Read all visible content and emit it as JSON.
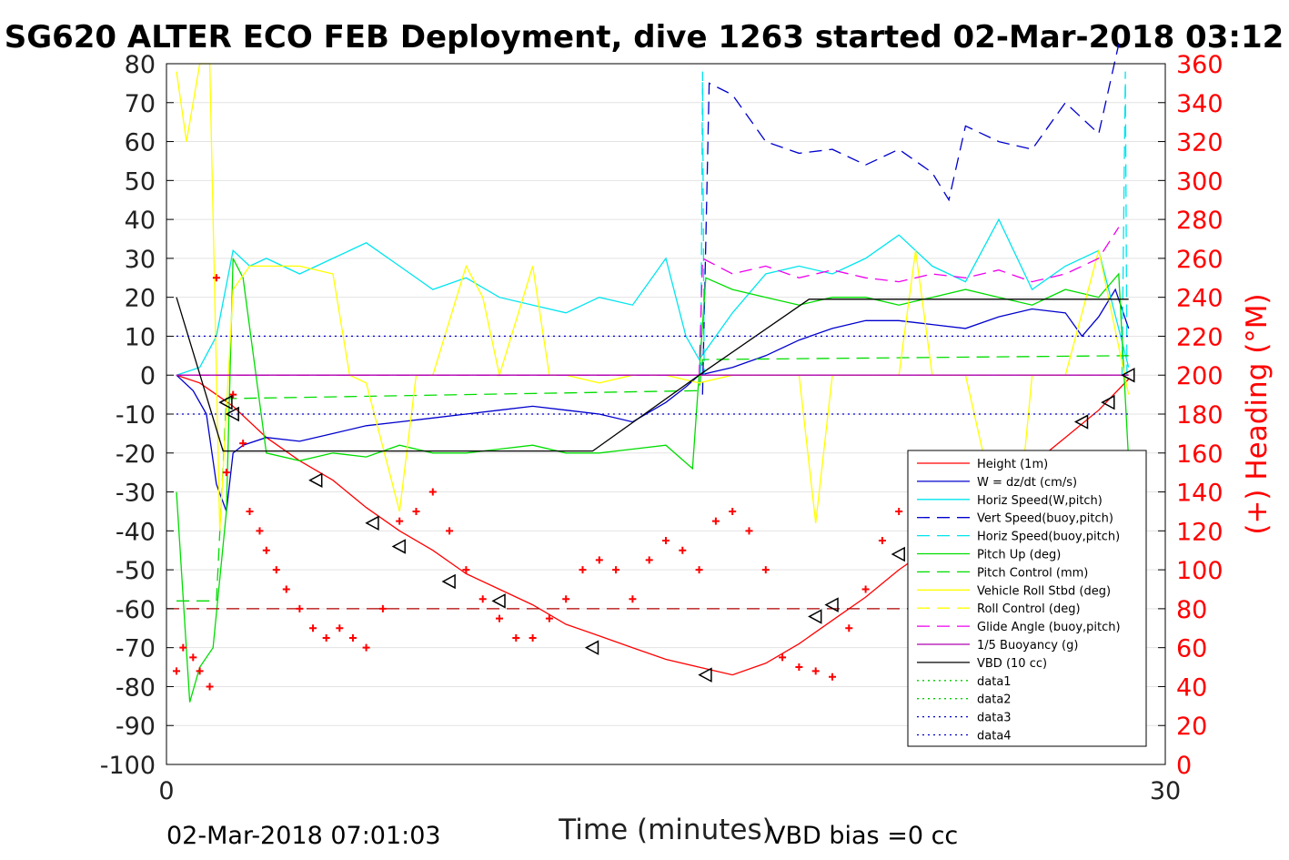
{
  "chart_data": {
    "type": "line",
    "title": "SG620 ALTER ECO FEB Deployment, dive 1263 started 02-Mar-2018 03:12",
    "xlabel": "Time (minutes)",
    "ylabel_right": "(+) Heading (°M)",
    "xlim": [
      0,
      30
    ],
    "ylim": [
      -100,
      80
    ],
    "ylim_right": [
      0,
      360
    ],
    "x_ticks": [
      "0",
      "30"
    ],
    "y_ticks": [
      "80",
      "70",
      "60",
      "50",
      "40",
      "30",
      "20",
      "10",
      "0",
      "-10",
      "-20",
      "-30",
      "-40",
      "-50",
      "-60",
      "-70",
      "-80",
      "-90",
      "-100"
    ],
    "y_ticks_right": [
      "360",
      "340",
      "320",
      "300",
      "280",
      "260",
      "240",
      "220",
      "200",
      "180",
      "160",
      "140",
      "120",
      "100",
      "80",
      "60",
      "40",
      "20",
      "0"
    ],
    "grid": "horizontal",
    "legend_position": "bottom-right",
    "footer_left": "02-Mar-2018 07:01:03",
    "footer_right": "VBD bias =0 cc",
    "colors": {
      "height": "#ff0000",
      "w": "#0000cd",
      "horiz_speed": "#00e5ee",
      "vert_speed_buoy": "#0000cd",
      "pitch": "#00dd00",
      "roll": "#ffff00",
      "glide": "#ee00ee",
      "buoyancy": "#b000b0",
      "vbd": "#000000",
      "heading": "#ff0000",
      "dotted": "#0000cd",
      "green_dotted": "#00cc00"
    },
    "series": [
      {
        "name": "Height (1m)",
        "style": "solid",
        "color": "#ff0000",
        "x": [
          0.3,
          1.0,
          2.0,
          3.0,
          4.0,
          5.0,
          6.0,
          7.0,
          8.0,
          9.0,
          10.0,
          11.0,
          12.0,
          13.0,
          14.0,
          15.0,
          16.0,
          17.0,
          18.0,
          19.0,
          20.0,
          21.0,
          22.0,
          23.0,
          24.0,
          25.0,
          26.0,
          27.0,
          28.0,
          28.9
        ],
        "values": [
          0,
          -2,
          -8,
          -16,
          -22,
          -27,
          -34,
          -40,
          -45,
          -51,
          -55,
          -59,
          -64,
          -67,
          -70,
          -73,
          -75,
          -77,
          -74,
          -69,
          -63,
          -57,
          -50,
          -44,
          -37,
          -30,
          -23,
          -16,
          -9,
          -1
        ]
      },
      {
        "name": "W = dz/dt (cm/s)",
        "style": "solid",
        "color": "#0000cd",
        "x": [
          0.3,
          0.8,
          1.2,
          1.5,
          1.8,
          2.0,
          2.3,
          3.0,
          4.0,
          5.0,
          6.0,
          7.0,
          8.0,
          9.0,
          10.0,
          11.0,
          12.0,
          13.0,
          14.0,
          15.0,
          15.6,
          16.0,
          17.0,
          18.0,
          19.0,
          20.0,
          21.0,
          22.0,
          23.0,
          24.0,
          25.0,
          26.0,
          27.0,
          27.5,
          28.0,
          28.5,
          28.9
        ],
        "values": [
          0,
          -4,
          -10,
          -28,
          -35,
          -20,
          -18,
          -16,
          -17,
          -15,
          -13,
          -12,
          -11,
          -10,
          -9,
          -8,
          -9,
          -10,
          -12,
          -7,
          -3,
          0,
          2,
          5,
          9,
          12,
          14,
          14,
          13,
          12,
          15,
          17,
          16,
          10,
          15,
          22,
          12
        ]
      },
      {
        "name": "Horiz Speed(W,pitch)",
        "style": "solid",
        "color": "#00e5ee",
        "x": [
          0.3,
          1.0,
          1.5,
          2.0,
          2.5,
          3.0,
          4.0,
          5.0,
          6.0,
          7.0,
          8.0,
          9.0,
          10.0,
          11.0,
          12.0,
          13.0,
          14.0,
          15.0,
          15.6,
          16.0,
          17.0,
          18.0,
          19.0,
          20.0,
          21.0,
          22.0,
          23.0,
          24.0,
          25.0,
          26.0,
          27.0,
          28.0,
          28.9
        ],
        "values": [
          0,
          2,
          10,
          32,
          28,
          30,
          26,
          30,
          34,
          28,
          22,
          25,
          20,
          18,
          16,
          20,
          18,
          30,
          10,
          4,
          16,
          26,
          28,
          26,
          30,
          36,
          28,
          24,
          40,
          22,
          28,
          32,
          2
        ]
      },
      {
        "name": "Vert Speed(buoy,pitch)",
        "style": "dash",
        "color": "#0000cd",
        "x": [
          16.1,
          16.3,
          17.0,
          18.0,
          19.0,
          20.0,
          21.0,
          22.0,
          23.0,
          23.5,
          24.0,
          25.0,
          26.0,
          27.0,
          28.0,
          28.6
        ],
        "values": [
          -5,
          75,
          72,
          60,
          57,
          58,
          54,
          58,
          52,
          45,
          64,
          60,
          58,
          70,
          62,
          85
        ]
      },
      {
        "name": "Horiz Speed(buoy,pitch)",
        "style": "dash",
        "color": "#00e5ee",
        "x": [
          16.05,
          16.1,
          16.15,
          28.7,
          28.8,
          28.85
        ],
        "values": [
          0,
          78,
          0,
          0,
          78,
          0
        ]
      },
      {
        "name": "Pitch Up (deg)",
        "style": "solid",
        "color": "#00dd00",
        "x": [
          0.3,
          0.7,
          1.0,
          1.4,
          1.8,
          2.0,
          2.3,
          3.0,
          4.0,
          5.0,
          6.0,
          7.0,
          8.0,
          9.0,
          10.0,
          11.0,
          12.0,
          13.0,
          14.0,
          15.0,
          15.8,
          16.2,
          17.0,
          18.0,
          19.0,
          20.0,
          21.0,
          22.0,
          23.0,
          24.0,
          25.0,
          26.0,
          27.0,
          28.0,
          28.6,
          28.9
        ],
        "values": [
          -30,
          -84,
          -75,
          -70,
          -35,
          30,
          25,
          -20,
          -22,
          -20,
          -21,
          -18,
          -20,
          -20,
          -19,
          -18,
          -20,
          -20,
          -19,
          -18,
          -24,
          25,
          22,
          20,
          18,
          20,
          20,
          18,
          20,
          22,
          20,
          18,
          22,
          20,
          26,
          -22
        ]
      },
      {
        "name": "Pitch Control (mm)",
        "style": "dash",
        "color": "#00dd00",
        "x": [
          0.3,
          1.5,
          1.8,
          2.0,
          16.0,
          16.1,
          28.9
        ],
        "values": [
          -58,
          -58,
          -6,
          -6,
          -4,
          4,
          5
        ]
      },
      {
        "name": "Vehicle Roll Stbd (deg)",
        "style": "solid",
        "color": "#ffff00",
        "x": [
          0.3,
          0.6,
          1.0,
          1.3,
          1.6,
          2.0,
          2.5,
          3.0,
          4.0,
          5.0,
          5.5,
          6.0,
          7.0,
          7.5,
          8.0,
          9.0,
          9.5,
          10.0,
          11.0,
          11.5,
          12.0,
          13.0,
          14.0,
          15.0,
          16.0,
          17.0,
          18.0,
          19.0,
          19.5,
          20.0,
          21.0,
          22.0,
          22.5,
          23.0,
          24.0,
          25.0,
          25.5,
          26.0,
          27.0,
          28.0,
          28.9
        ],
        "values": [
          78,
          60,
          80,
          80,
          -40,
          22,
          28,
          28,
          28,
          26,
          0,
          -2,
          -35,
          0,
          0,
          28,
          20,
          0,
          28,
          0,
          0,
          -2,
          0,
          0,
          -2,
          0,
          0,
          0,
          -38,
          0,
          0,
          0,
          32,
          0,
          0,
          -38,
          -45,
          0,
          0,
          32,
          -5
        ]
      },
      {
        "name": "Roll Control (deg)",
        "style": "dash",
        "color": "#ffff00",
        "x": [
          0.3,
          28.9
        ],
        "values": [
          0,
          0
        ]
      },
      {
        "name": "Glide Angle (buoy,pitch)",
        "style": "dash",
        "color": "#ee00ee",
        "x": [
          0.3,
          16.0,
          16.1,
          17.0,
          18.0,
          19.0,
          20.0,
          21.0,
          22.0,
          23.0,
          24.0,
          25.0,
          26.0,
          27.0,
          28.0,
          28.6
        ],
        "values": [
          0,
          0,
          30,
          26,
          28,
          25,
          27,
          25,
          24,
          26,
          25,
          27,
          24,
          26,
          30,
          38
        ]
      },
      {
        "name": "1/5 Buoyancy (g)",
        "style": "solid",
        "color": "#b000b0",
        "x": [
          0.3,
          28.9
        ],
        "values": [
          0,
          0
        ]
      },
      {
        "name": "VBD (10 cc)",
        "style": "solid",
        "color": "#000000",
        "x": [
          0.3,
          1.7,
          12.8,
          16.0,
          19.3,
          28.9
        ],
        "values": [
          20,
          -19.5,
          -19.5,
          0,
          19.5,
          19.5
        ]
      },
      {
        "name": "data1",
        "style": "dot",
        "color": "#00cc00",
        "x": [],
        "values": []
      },
      {
        "name": "data2",
        "style": "dot",
        "color": "#00cc00",
        "x": [],
        "values": []
      },
      {
        "name": "data3",
        "style": "dot",
        "color": "#0000cd",
        "x": [
          0.3,
          28.9
        ],
        "values": [
          10,
          10
        ]
      },
      {
        "name": "data4",
        "style": "dot",
        "color": "#0000cd",
        "x": [
          0.3,
          28.9
        ],
        "values": [
          -10,
          -10
        ]
      }
    ],
    "heading_series": {
      "axis": "right",
      "x": [
        0.3,
        0.5,
        0.8,
        1.0,
        1.3,
        1.5,
        1.8,
        2.0,
        2.3,
        2.5,
        2.8,
        3.0,
        3.3,
        3.6,
        4.0,
        4.4,
        4.8,
        5.2,
        5.6,
        6.0,
        6.5,
        7.0,
        7.5,
        8.0,
        8.5,
        9.0,
        9.5,
        10.0,
        10.5,
        11.0,
        11.5,
        12.0,
        12.5,
        13.0,
        13.5,
        14.0,
        14.5,
        15.0,
        15.5,
        16.0,
        16.5,
        17.0,
        17.5,
        18.0,
        18.5,
        19.0,
        19.5,
        20.0,
        20.5,
        21.0,
        21.5,
        22.0,
        22.5,
        23.0,
        23.5,
        24.0,
        24.5,
        25.0,
        25.5,
        26.0,
        26.5,
        27.0,
        27.5,
        28.0,
        28.5,
        28.9
      ],
      "values": [
        48,
        60,
        55,
        48,
        40,
        250,
        150,
        190,
        165,
        130,
        120,
        110,
        100,
        90,
        80,
        70,
        65,
        70,
        65,
        60,
        80,
        125,
        130,
        140,
        120,
        100,
        85,
        75,
        65,
        65,
        75,
        85,
        100,
        105,
        100,
        85,
        105,
        115,
        110,
        100,
        125,
        130,
        120,
        100,
        55,
        50,
        48,
        45,
        70,
        90,
        115,
        130,
        150,
        140,
        100,
        80,
        60,
        45,
        40,
        50,
        65,
        95,
        120,
        140,
        110,
        150
      ]
    },
    "heading_reference": 80,
    "markers": {
      "x": [
        1.8,
        2.0,
        4.5,
        6.2,
        7.0,
        8.5,
        10.0,
        12.8,
        16.2,
        19.5,
        20.0,
        22.0,
        23.0,
        25.0,
        26.3,
        27.5,
        28.3,
        28.9
      ],
      "values": [
        -7,
        -10,
        -27,
        -38,
        -44,
        -53,
        -58,
        -70,
        -77,
        -62,
        -59,
        -46,
        -41,
        -30,
        -24,
        -12,
        -7,
        0
      ]
    }
  }
}
